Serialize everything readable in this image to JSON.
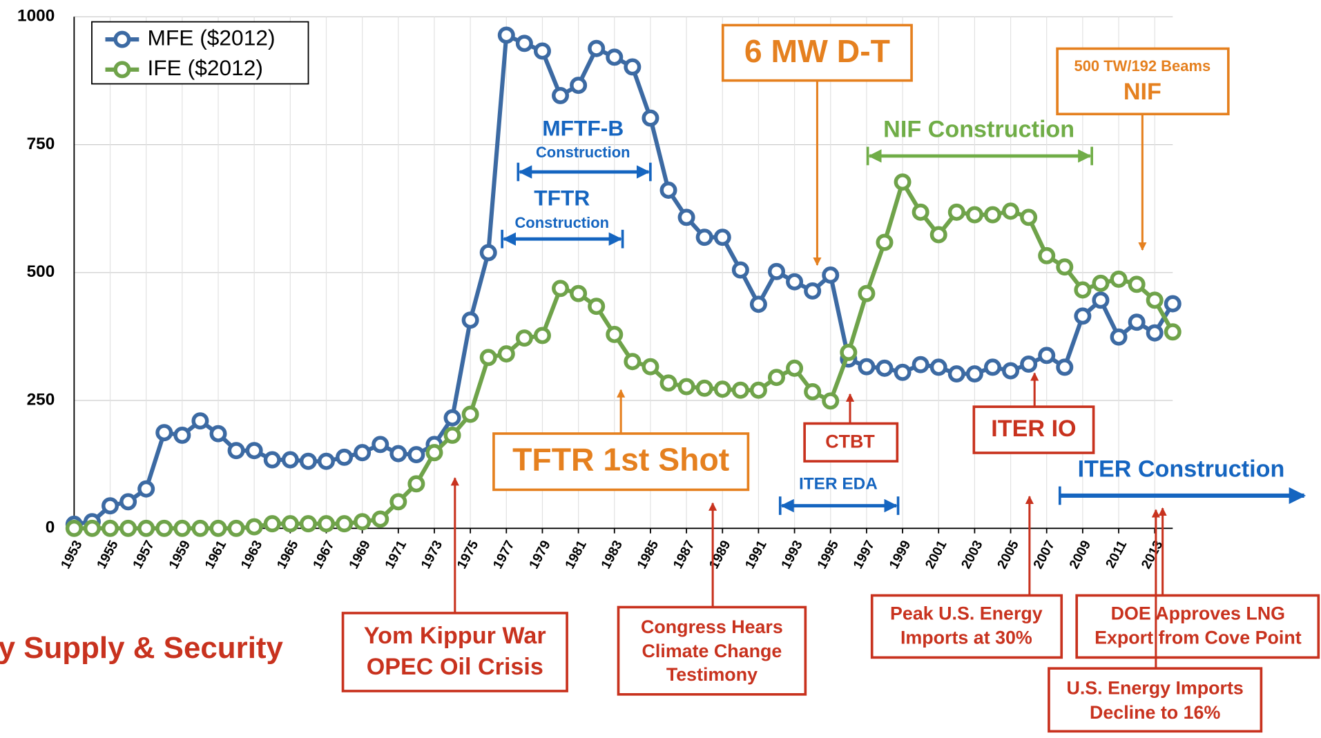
{
  "chart_data": {
    "type": "line",
    "x": [
      1953,
      1954,
      1955,
      1956,
      1957,
      1958,
      1959,
      1960,
      1961,
      1962,
      1963,
      1964,
      1965,
      1966,
      1967,
      1968,
      1969,
      1970,
      1971,
      1972,
      1973,
      1974,
      1975,
      1976,
      1977,
      1978,
      1979,
      1980,
      1981,
      1982,
      1983,
      1984,
      1985,
      1986,
      1987,
      1988,
      1989,
      1990,
      1991,
      1992,
      1993,
      1994,
      1995,
      1996,
      1997,
      1998,
      1999,
      2000,
      2001,
      2002,
      2003,
      2004,
      2005,
      2006,
      2007,
      2008,
      2009,
      2010,
      2011,
      2012,
      2013,
      2014
    ],
    "series": [
      {
        "name": "MFE ($2012)",
        "color": "#3c6aa3",
        "values": [
          8,
          13,
          44,
          52,
          77,
          187,
          182,
          210,
          185,
          152,
          152,
          134,
          134,
          131,
          131,
          139,
          148,
          164,
          146,
          144,
          164,
          216,
          407,
          539,
          964,
          948,
          933,
          846,
          866,
          938,
          921,
          902,
          802,
          661,
          608,
          569,
          569,
          505,
          438,
          502,
          482,
          464,
          495,
          331,
          316,
          313,
          305,
          320,
          315,
          302,
          302,
          315,
          308,
          321,
          338,
          315,
          415,
          446,
          374,
          403,
          382,
          439
        ]
      },
      {
        "name": "IFE ($2012)",
        "color": "#6fa34a",
        "values": [
          0,
          0,
          0,
          0,
          0,
          0,
          0,
          0,
          0,
          0,
          3,
          9,
          9,
          9,
          9,
          9,
          13,
          18,
          52,
          87,
          148,
          182,
          223,
          334,
          341,
          372,
          377,
          469,
          459,
          434,
          379,
          326,
          316,
          284,
          277,
          274,
          272,
          270,
          270,
          295,
          313,
          267,
          249,
          344,
          459,
          559,
          677,
          618,
          574,
          618,
          613,
          613,
          620,
          608,
          533,
          511,
          466,
          479,
          487,
          477,
          446,
          384
        ]
      }
    ],
    "xlim": [
      1953,
      2014
    ],
    "xticks": [
      1953,
      1955,
      1957,
      1959,
      1961,
      1963,
      1965,
      1967,
      1969,
      1971,
      1973,
      1975,
      1977,
      1979,
      1981,
      1983,
      1985,
      1987,
      1989,
      1991,
      1993,
      1995,
      1997,
      1999,
      2001,
      2003,
      2005,
      2007,
      2009,
      2011,
      2013
    ],
    "ylim": [
      0,
      1000
    ],
    "yticks": [
      0,
      250,
      500,
      750,
      1000
    ],
    "grid": true,
    "legend": "upper left",
    "annotations": [
      {
        "lines": [
          "6 MW D-T"
        ],
        "color": "#e5801f"
      },
      {
        "lines": [
          "500 TW/192 Beams",
          "NIF"
        ],
        "color": "#e5801f"
      },
      {
        "lines": [
          "MFTF-B",
          "Construction"
        ],
        "color": "#1565c0"
      },
      {
        "lines": [
          "TFTR",
          "Construction"
        ],
        "color": "#1565c0"
      },
      {
        "lines": [
          "NIF Construction"
        ],
        "color": "#70ad47"
      },
      {
        "lines": [
          "TFTR 1st Shot"
        ],
        "color": "#e5801f"
      },
      {
        "lines": [
          "CTBT"
        ],
        "color": "#c8321e"
      },
      {
        "lines": [
          "ITER IO"
        ],
        "color": "#c8321e"
      },
      {
        "lines": [
          "ITER EDA"
        ],
        "color": "#1565c0"
      },
      {
        "lines": [
          "ITER Construction"
        ],
        "color": "#1565c0"
      },
      {
        "lines": [
          "Yom Kippur War",
          "OPEC Oil Crisis"
        ],
        "color": "#c8321e"
      },
      {
        "lines": [
          "Congress Hears",
          "Climate Change",
          "Testimony"
        ],
        "color": "#c8321e"
      },
      {
        "lines": [
          "Peak U.S. Energy",
          "Imports at 30%"
        ],
        "color": "#c8321e"
      },
      {
        "lines": [
          "DOE Approves LNG",
          "Export from Cove Point"
        ],
        "color": "#c8321e"
      },
      {
        "lines": [
          "U.S. Energy Imports",
          "Decline to 16%"
        ],
        "color": "#c8321e"
      },
      {
        "lines": [
          "y Supply & Security"
        ],
        "color": "#c8321e"
      }
    ]
  }
}
